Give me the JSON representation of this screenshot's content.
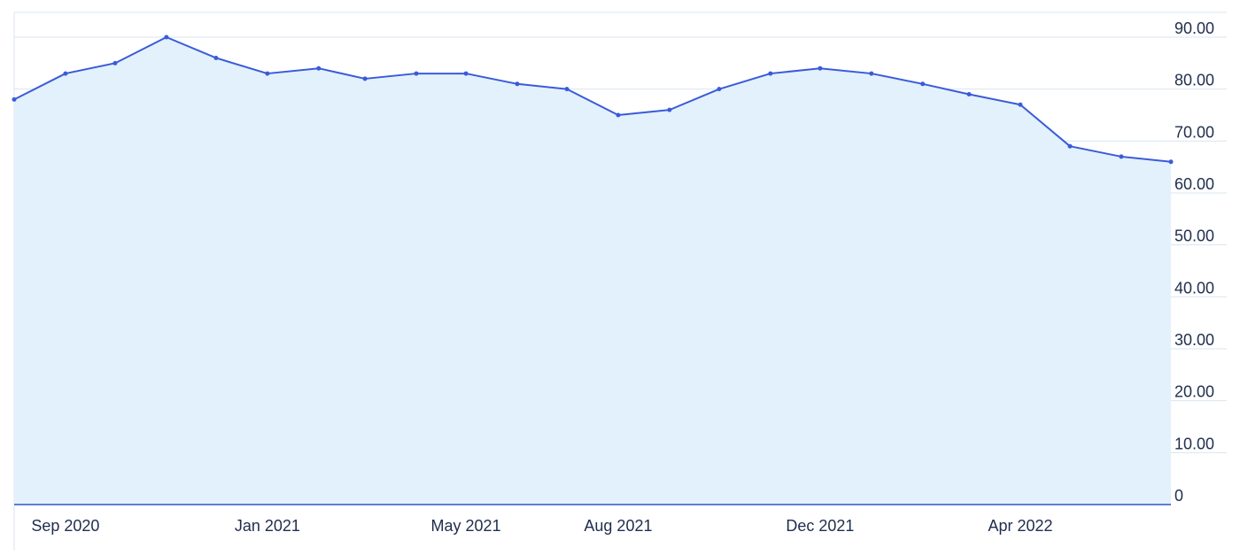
{
  "chart_data": {
    "type": "area",
    "title": "",
    "xlabel": "",
    "ylabel": "",
    "x": [
      "2020-08-01",
      "2020-09-01",
      "2020-10-01",
      "2020-11-01",
      "2020-12-01",
      "2021-01-01",
      "2021-02-01",
      "2021-03-01",
      "2021-04-01",
      "2021-05-01",
      "2021-06-01",
      "2021-07-01",
      "2021-08-01",
      "2021-09-01",
      "2021-10-01",
      "2021-11-01",
      "2021-12-01",
      "2022-01-01",
      "2022-02-01",
      "2022-03-01",
      "2022-04-01",
      "2022-05-01",
      "2022-06-01",
      "2022-07-01"
    ],
    "series": [
      {
        "values": [
          78,
          83,
          85,
          90,
          86,
          83,
          84,
          82,
          83,
          83,
          81,
          80,
          75,
          76,
          80,
          83,
          84,
          83,
          81,
          79,
          77,
          69,
          67,
          66
        ]
      }
    ],
    "x_tick_labels": [
      "Sep 2020",
      "Jan 2021",
      "May 2021",
      "Aug 2021",
      "Dec 2021",
      "Apr 2022"
    ],
    "x_tick_dates": [
      "2020-09-01",
      "2021-01-01",
      "2021-05-01",
      "2021-08-01",
      "2021-12-01",
      "2022-04-01"
    ],
    "y_tick_labels": [
      "0",
      "10.00",
      "20.00",
      "30.00",
      "40.00",
      "50.00",
      "60.00",
      "70.00",
      "80.00",
      "90.00"
    ],
    "y_tick_values": [
      0,
      10,
      20,
      30,
      40,
      50,
      60,
      70,
      80,
      90
    ],
    "ylim": [
      0,
      90
    ],
    "xlim": [
      "2020-08-01",
      "2022-07-01"
    ],
    "grid": true,
    "y_axis_position": "right",
    "legend": false,
    "colors": {
      "line": "#3a5bd9",
      "fill": "#e3f1fc",
      "grid": "#d9e4ef",
      "axis": "#2b55c7",
      "tick_text": "#1f2d4d"
    }
  }
}
